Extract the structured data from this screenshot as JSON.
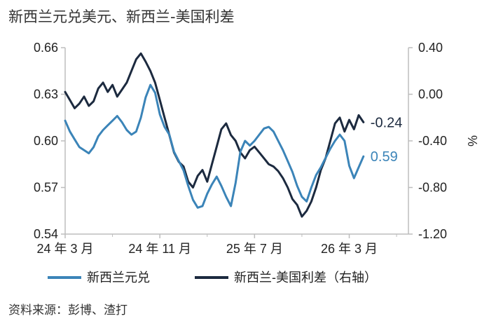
{
  "title": "新西兰元兑美元、新西兰-美国利差",
  "source": "资料来源：彭博、渣打",
  "colors": {
    "nzd": "#3b84b8",
    "spread": "#1c2a3f",
    "axis": "#bdbdbd",
    "text": "#222222"
  },
  "chart_data": {
    "type": "line",
    "x_tick_labels": [
      "24 年 3 月",
      "24 年 11 月",
      "25 年 7 月",
      "26 年 3 月"
    ],
    "x_tick_months": [
      0,
      8,
      16,
      24
    ],
    "x_range_months": [
      0,
      29
    ],
    "y_left": {
      "ticks": [
        "0.66",
        "0.63",
        "0.60",
        "0.57",
        "0.54"
      ],
      "range": [
        0.54,
        0.66
      ]
    },
    "y_right": {
      "ticks": [
        "0.40",
        "0.00",
        "-0.40",
        "-0.80",
        "-1.20"
      ],
      "range": [
        -1.2,
        0.4
      ],
      "label": "%"
    },
    "legend_position": "bottom",
    "series": [
      {
        "name": "新西兰元兑",
        "axis": "left",
        "end_label": "0.59",
        "x_months": [
          0,
          0.4,
          0.8,
          1.2,
          1.6,
          2.0,
          2.4,
          2.8,
          3.2,
          3.6,
          4.0,
          4.4,
          4.8,
          5.2,
          5.6,
          6.0,
          6.4,
          6.8,
          7.2,
          7.6,
          8.0,
          8.4,
          8.8,
          9.2,
          9.6,
          10.0,
          10.4,
          10.8,
          11.2,
          11.6,
          12.0,
          12.4,
          12.8,
          13.2,
          13.6,
          14.0,
          14.4,
          14.8,
          15.2,
          15.6,
          16.0,
          16.4,
          16.8,
          17.2,
          17.6,
          18.0,
          18.4,
          18.8,
          19.2,
          19.6,
          20.0,
          20.4,
          20.8,
          21.2,
          21.6,
          22.0,
          22.4,
          22.8,
          23.2,
          23.6,
          24.0,
          24.4,
          24.8,
          25.2
        ],
        "values": [
          0.613,
          0.606,
          0.601,
          0.596,
          0.594,
          0.592,
          0.596,
          0.603,
          0.607,
          0.61,
          0.613,
          0.616,
          0.612,
          0.607,
          0.604,
          0.606,
          0.615,
          0.628,
          0.636,
          0.631,
          0.617,
          0.609,
          0.604,
          0.593,
          0.587,
          0.581,
          0.571,
          0.562,
          0.557,
          0.558,
          0.566,
          0.572,
          0.577,
          0.571,
          0.564,
          0.558,
          0.573,
          0.593,
          0.6,
          0.597,
          0.6,
          0.604,
          0.608,
          0.609,
          0.606,
          0.6,
          0.594,
          0.587,
          0.58,
          0.571,
          0.564,
          0.561,
          0.57,
          0.578,
          0.583,
          0.589,
          0.595,
          0.6,
          0.604,
          0.6,
          0.584,
          0.576,
          0.583,
          0.59
        ]
      },
      {
        "name": "新西兰-美国利差（右轴）",
        "axis": "right",
        "end_label": "-0.24",
        "x_months": [
          0,
          0.4,
          0.8,
          1.2,
          1.6,
          2.0,
          2.4,
          2.8,
          3.2,
          3.6,
          4.0,
          4.4,
          4.8,
          5.2,
          5.6,
          6.0,
          6.4,
          6.8,
          7.2,
          7.6,
          8.0,
          8.4,
          8.8,
          9.2,
          9.6,
          10.0,
          10.4,
          10.8,
          11.2,
          11.6,
          12.0,
          12.4,
          12.8,
          13.2,
          13.6,
          14.0,
          14.4,
          14.8,
          15.2,
          15.6,
          16.0,
          16.4,
          16.8,
          17.2,
          17.6,
          18.0,
          18.4,
          18.8,
          19.2,
          19.6,
          20.0,
          20.4,
          20.8,
          21.2,
          21.6,
          22.0,
          22.4,
          22.8,
          23.2,
          23.6,
          24.0,
          24.4,
          24.8,
          25.2
        ],
        "values": [
          0.02,
          -0.05,
          -0.12,
          -0.08,
          -0.02,
          -0.1,
          -0.06,
          0.05,
          0.1,
          0.02,
          0.08,
          -0.02,
          0.04,
          0.1,
          0.2,
          0.3,
          0.35,
          0.28,
          0.2,
          0.1,
          -0.05,
          -0.2,
          -0.35,
          -0.5,
          -0.58,
          -0.62,
          -0.75,
          -0.8,
          -0.7,
          -0.65,
          -0.75,
          -0.6,
          -0.45,
          -0.3,
          -0.25,
          -0.35,
          -0.4,
          -0.5,
          -0.55,
          -0.48,
          -0.45,
          -0.5,
          -0.55,
          -0.6,
          -0.62,
          -0.66,
          -0.72,
          -0.8,
          -0.9,
          -0.95,
          -1.05,
          -1.0,
          -0.92,
          -0.8,
          -0.65,
          -0.55,
          -0.4,
          -0.25,
          -0.2,
          -0.32,
          -0.22,
          -0.3,
          -0.18,
          -0.24
        ]
      }
    ]
  }
}
